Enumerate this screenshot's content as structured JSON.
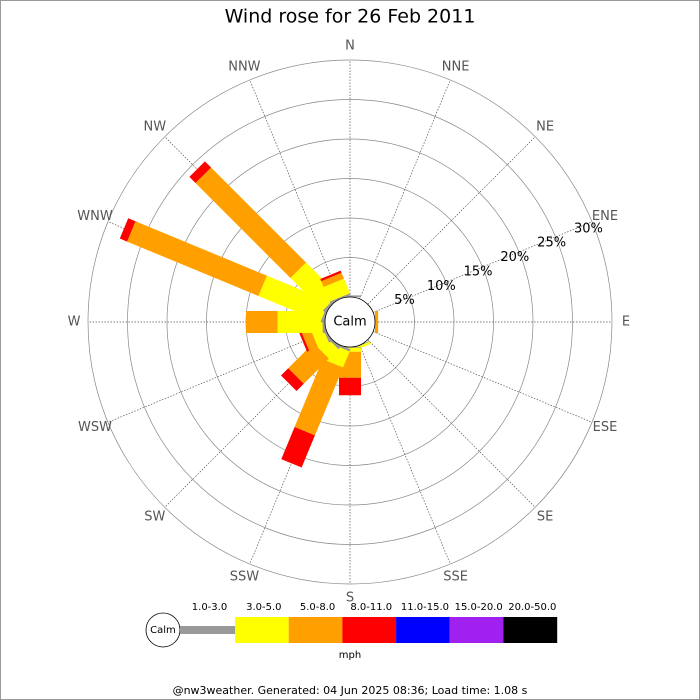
{
  "chart_data": {
    "type": "windrose",
    "title": "Wind rose for 26 Feb 2011",
    "directions": [
      "N",
      "NNE",
      "NE",
      "ENE",
      "E",
      "ESE",
      "SE",
      "SSE",
      "S",
      "SSW",
      "SW",
      "WSW",
      "W",
      "WNW",
      "NW",
      "NNW"
    ],
    "series": [
      {
        "name": "1.0-3.0",
        "color": "#999999",
        "values": [
          0.2,
          0,
          0,
          0,
          0.1,
          0,
          0,
          0.1,
          0.1,
          0.3,
          0.3,
          0.3,
          0.3,
          0.3,
          0.3,
          0.2
        ]
      },
      {
        "name": "3.0-5.0",
        "color": "#ffff00",
        "values": [
          0,
          0,
          0,
          0,
          0,
          0,
          0,
          0.3,
          0.5,
          2.2,
          1.7,
          1.5,
          5.7,
          8.5,
          5.8,
          2
        ]
      },
      {
        "name": "5.0-8.0",
        "color": "#ffa000",
        "values": [
          0,
          0,
          0,
          0,
          0.3,
          0,
          0,
          0,
          3.3,
          9.3,
          4.5,
          1.2,
          4,
          18,
          17,
          0.8
        ]
      },
      {
        "name": "8.0-11.0",
        "color": "#ff0000",
        "values": [
          0,
          0,
          0,
          0,
          0,
          0,
          0,
          0,
          2.2,
          4.4,
          1.3,
          0.3,
          0,
          1,
          1.1,
          0.3
        ]
      },
      {
        "name": "11.0-15.0",
        "color": "#0000ff",
        "values": [
          0,
          0,
          0,
          0,
          0,
          0,
          0,
          0,
          0,
          0,
          0,
          0,
          0,
          0,
          0,
          0
        ]
      },
      {
        "name": "15.0-20.0",
        "color": "#a020f0",
        "values": [
          0,
          0,
          0,
          0,
          0,
          0,
          0,
          0,
          0,
          0,
          0,
          0,
          0,
          0,
          0,
          0
        ]
      },
      {
        "name": "20.0-50.0",
        "color": "#000000",
        "values": [
          0,
          0,
          0,
          0,
          0,
          0,
          0,
          0,
          0,
          0,
          0,
          0,
          0,
          0,
          0,
          0
        ]
      }
    ],
    "rlim": [
      0,
      30
    ],
    "rticks": [
      {
        "value": 5,
        "label": "5%"
      },
      {
        "value": 10,
        "label": "10%"
      },
      {
        "value": 15,
        "label": "15%"
      },
      {
        "value": 20,
        "label": "20%"
      },
      {
        "value": 25,
        "label": "25%"
      },
      {
        "value": 30,
        "label": "30%"
      }
    ],
    "calm_label": "Calm",
    "unit_label": "mph",
    "footer": "@nw3weather. Generated: 04 Jun 2025 08:36; Load time: 1.08 s"
  }
}
